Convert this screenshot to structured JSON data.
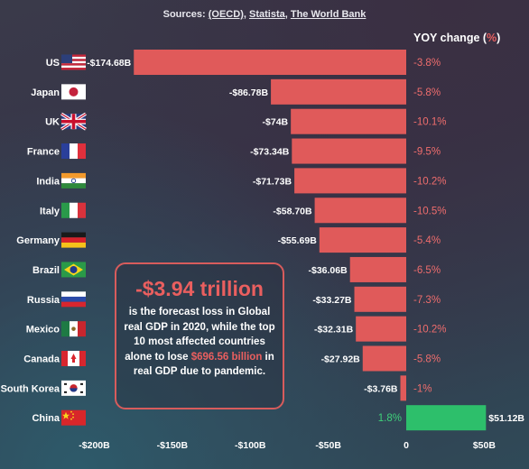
{
  "sources": {
    "prefix": "Sources: ",
    "oecd": "(OECD)",
    "sep1": ", ",
    "statista": "Statista",
    "sep2": ", ",
    "worldbank": "The World Bank"
  },
  "yoy_header": {
    "label": "YOY change (",
    "unit": "%",
    "close": ")"
  },
  "callout": {
    "headline": "-$3.94 trillion",
    "text_before": "is the forecast loss in Global real GDP in 2020, while the top 10 most affected countries alone to lose ",
    "highlight": "$696.56 billion",
    "text_after": " in real GDP due to pandemic."
  },
  "colors": {
    "negative": "#e05a5a",
    "positive": "#2dbf6b",
    "yoy_negative": "#ef6d6d",
    "yoy_positive": "#3fd07a"
  },
  "chart_data": {
    "type": "bar",
    "orientation": "horizontal",
    "categories": [
      "US",
      "Japan",
      "UK",
      "France",
      "India",
      "Italy",
      "Germany",
      "Brazil",
      "Russia",
      "Mexico",
      "Canada",
      "South Korea",
      "China"
    ],
    "flags": [
      "us-flag-icon",
      "japan-flag-icon",
      "uk-flag-icon",
      "france-flag-icon",
      "india-flag-icon",
      "italy-flag-icon",
      "germany-flag-icon",
      "brazil-flag-icon",
      "russia-flag-icon",
      "mexico-flag-icon",
      "canada-flag-icon",
      "south-korea-flag-icon",
      "china-flag-icon"
    ],
    "values": [
      -174.68,
      -86.78,
      -74,
      -73.34,
      -71.73,
      -58.7,
      -55.69,
      -36.06,
      -33.27,
      -32.31,
      -27.92,
      -3.76,
      51.12
    ],
    "value_labels": [
      "-$174.68B",
      "-$86.78B",
      "-$74B",
      "-$73.34B",
      "-$71.73B",
      "-$58.70B",
      "-$55.69B",
      "-$36.06B",
      "-$33.27B",
      "-$32.31B",
      "-$27.92B",
      "-$3.76B",
      "$51.12B"
    ],
    "yoy_change": [
      "-3.8%",
      "-5.8%",
      "-10.1%",
      "-9.5%",
      "-10.2%",
      "-10.5%",
      "-5.4%",
      "-6.5%",
      "-7.3%",
      "-10.2%",
      "-5.8%",
      "-1%",
      "1.8%"
    ],
    "xticks": [
      -200,
      -150,
      -100,
      -50,
      0,
      50
    ],
    "xtick_labels": [
      "-$200B",
      "-$150B",
      "-$100B",
      "-$50B",
      "0",
      "$50B"
    ],
    "xlim": [
      -200,
      55
    ],
    "grid": false
  }
}
